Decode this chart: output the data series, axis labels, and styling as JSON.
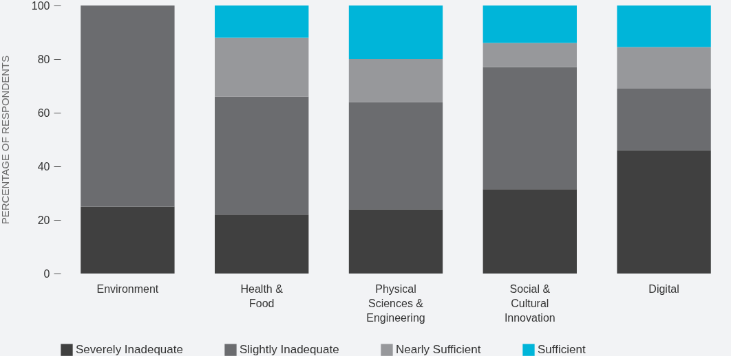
{
  "chart_data": {
    "type": "bar",
    "stacked": true,
    "ylabel": "PERCENTAGE OF RESPONDENTS",
    "categories": [
      "Environment",
      "Health &\nFood",
      "Physical\nSciences &\nEngineering",
      "Social &\nCultural\nInnovation",
      "Digital"
    ],
    "series": [
      {
        "name": "Severely Inadequate",
        "color": "#404040",
        "values": [
          25,
          22,
          24,
          31.5,
          46
        ]
      },
      {
        "name": "Slightly Inadequate",
        "color": "#6b6c6f",
        "values": [
          75,
          44,
          40,
          45.5,
          23
        ]
      },
      {
        "name": "Nearly Sufficient",
        "color": "#97989b",
        "values": [
          null,
          22,
          16,
          9,
          15.5
        ]
      },
      {
        "name": "Sufficient",
        "color": "#00b5d9",
        "values": [
          null,
          12,
          20,
          14,
          15.5
        ]
      }
    ],
    "ylim": [
      0,
      100
    ],
    "yticks": [
      0,
      20,
      40,
      60,
      80,
      100
    ],
    "grid": false,
    "legend": "bottom"
  }
}
